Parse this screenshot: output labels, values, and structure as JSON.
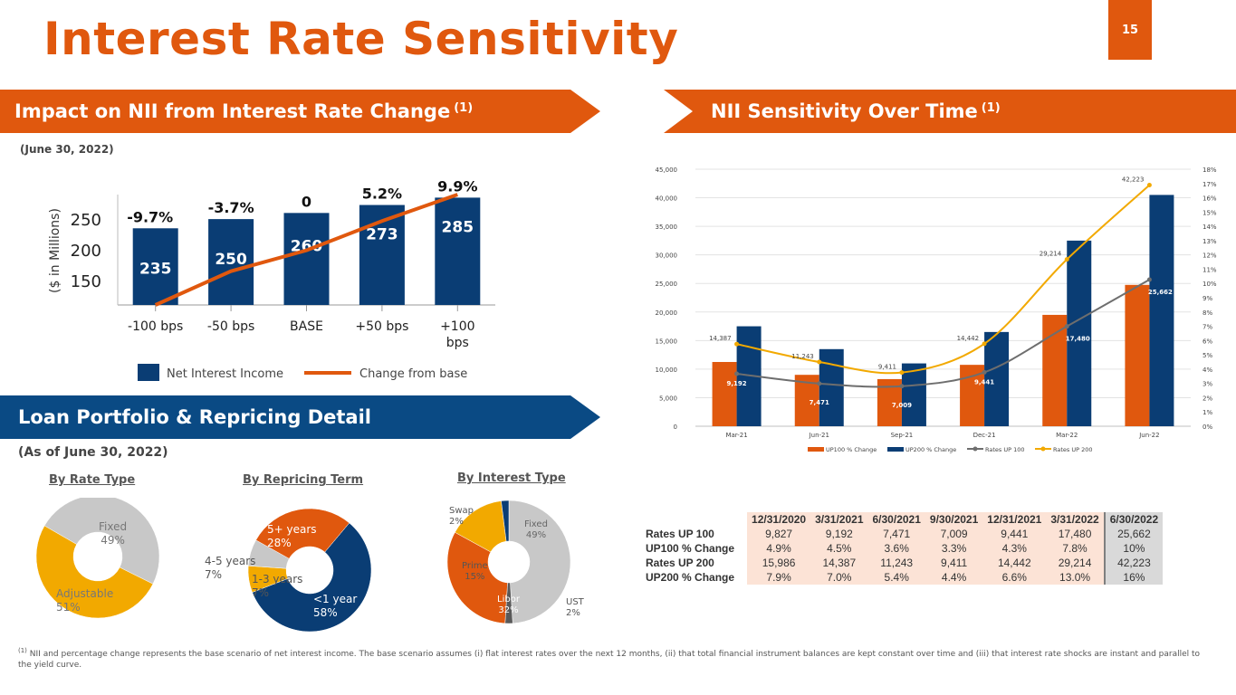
{
  "header": {
    "title": "Interest Rate Sensitivity",
    "page_number": "15"
  },
  "sections": {
    "nii_impact": {
      "title": "Impact on NII from Interest Rate Change",
      "footnote_ref": "(1)",
      "date": "(June 30, 2022)"
    },
    "nii_time": {
      "title": "NII Sensitivity Over Time",
      "footnote_ref": "(1)"
    },
    "loan": {
      "title": "Loan Portfolio & Repricing Detail",
      "date": "(As of June 30, 2022)"
    }
  },
  "colors": {
    "orange": "#E0580E",
    "navy": "#0A3D74",
    "gold": "#F2A900",
    "grey": "#C8C8C8",
    "dark_grey": "#595959",
    "line_grey": "#6E6E6E"
  },
  "chart_data": [
    {
      "id": "nii_impact",
      "type": "bar",
      "title": "",
      "xlabel": "",
      "ylabel": "($ in Millions)",
      "categories": [
        "-100 bps",
        "-50 bps",
        "BASE",
        "+50 bps",
        "+100 bps"
      ],
      "yticks": [
        "150",
        "200",
        "250"
      ],
      "ylim": [
        110,
        290
      ],
      "series": [
        {
          "name": "Net Interest Income",
          "kind": "bar",
          "values": [
            235,
            250,
            260,
            273,
            285
          ],
          "labels": [
            "235",
            "250",
            "260",
            "273",
            "285"
          ]
        },
        {
          "name": "Change from base",
          "kind": "line",
          "values": [
            -9.7,
            -3.7,
            0,
            5.2,
            9.9
          ],
          "labels": [
            "-9.7%",
            "-3.7%",
            "0",
            "5.2%",
            "9.9%"
          ]
        }
      ],
      "legend": "bottom",
      "grid": false
    },
    {
      "id": "nii_time",
      "type": "bar",
      "title": "",
      "categories": [
        "Mar-21",
        "Jun-21",
        "Sep-21",
        "Dec-21",
        "Mar-22",
        "Jun-22"
      ],
      "y_left": {
        "ticks": [
          "0",
          "5,000",
          "10,000",
          "15,000",
          "20,000",
          "25,000",
          "30,000",
          "35,000",
          "40,000",
          "45,000"
        ],
        "lim": [
          0,
          45000
        ]
      },
      "y_right": {
        "ticks": [
          "0%",
          "1%",
          "2%",
          "3%",
          "4%",
          "5%",
          "6%",
          "7%",
          "8%",
          "9%",
          "10%",
          "11%",
          "12%",
          "13%",
          "14%",
          "15%",
          "16%",
          "17%",
          "18%"
        ],
        "lim": [
          0,
          18
        ]
      },
      "series": [
        {
          "name": "UP100 % Change",
          "kind": "bar",
          "axis": "right",
          "values": [
            4.5,
            3.6,
            3.3,
            4.3,
            7.8,
            9.9
          ]
        },
        {
          "name": "UP200 % Change",
          "kind": "bar",
          "axis": "right",
          "values": [
            7.0,
            5.4,
            4.4,
            6.6,
            13.0,
            16.2
          ]
        },
        {
          "name": "Rates UP 100",
          "kind": "line",
          "axis": "left",
          "values": [
            9192,
            7471,
            7009,
            9441,
            17480,
            25662
          ],
          "labels": [
            "9,192",
            "7,471",
            "7,009",
            "9,441",
            "17,480",
            "25,662"
          ]
        },
        {
          "name": "Rates UP 200",
          "kind": "line",
          "axis": "left",
          "values": [
            14387,
            11243,
            9411,
            14442,
            29214,
            42223
          ],
          "labels": [
            "14,387",
            "11,243",
            "9,411",
            "14,442",
            "29,214",
            "42,223"
          ]
        }
      ],
      "legend": "bottom",
      "grid": true
    },
    {
      "id": "by_rate_type",
      "type": "pie",
      "title": "By Rate Type",
      "slices": [
        {
          "label": "Fixed",
          "value": 49,
          "text": "49%"
        },
        {
          "label": "Adjustable",
          "value": 51,
          "text": "51%"
        }
      ]
    },
    {
      "id": "by_repricing_term",
      "type": "pie",
      "title": "By Repricing Term",
      "slices": [
        {
          "label": "<1 year",
          "value": 58,
          "text": "58%"
        },
        {
          "label": "1-3 years",
          "value": 7,
          "text": "7%"
        },
        {
          "label": "4-5 years",
          "value": 7,
          "text": "7%"
        },
        {
          "label": "5+ years",
          "value": 28,
          "text": "28%"
        }
      ]
    },
    {
      "id": "by_interest_type",
      "type": "pie",
      "title": "By Interest Type",
      "slices": [
        {
          "label": "Fixed",
          "value": 49,
          "text": "49%"
        },
        {
          "label": "UST",
          "value": 2,
          "text": "2%"
        },
        {
          "label": "Libor",
          "value": 32,
          "text": "32%"
        },
        {
          "label": "Prime",
          "value": 15,
          "text": "15%"
        },
        {
          "label": "Swap",
          "value": 2,
          "text": "2%"
        }
      ]
    },
    {
      "id": "rates_table",
      "type": "table",
      "columns": [
        "12/31/2020",
        "3/31/2021",
        "6/30/2021",
        "9/30/2021",
        "12/31/2021",
        "3/31/2022",
        "6/30/2022"
      ],
      "rows": [
        {
          "label": "Rates UP 100",
          "values": [
            "9,827",
            "9,192",
            "7,471",
            "7,009",
            "9,441",
            "17,480",
            "25,662"
          ]
        },
        {
          "label": "UP100 % Change",
          "values": [
            "4.9%",
            "4.5%",
            "3.6%",
            "3.3%",
            "4.3%",
            "7.8%",
            "10%"
          ]
        },
        {
          "label": "Rates UP 200",
          "values": [
            "15,986",
            "14,387",
            "11,243",
            "9,411",
            "14,442",
            "29,214",
            "42,223"
          ]
        },
        {
          "label": "UP200 % Change",
          "values": [
            "7.9%",
            "7.0%",
            "5.4%",
            "4.4%",
            "6.6%",
            "13.0%",
            "16%"
          ]
        }
      ]
    }
  ],
  "footnote": {
    "ref": "(1)",
    "text": "NII and percentage change represents the base scenario of net interest income. The base scenario assumes (i) flat interest rates over the next 12 months, (ii) that total financial instrument balances are kept constant over time and (iii) that interest rate shocks are instant and parallel to the yield curve."
  }
}
